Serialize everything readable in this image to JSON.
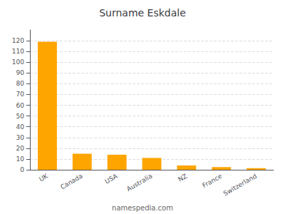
{
  "chart_data": {
    "type": "bar",
    "title": "Surname Eskdale",
    "categories": [
      "UK",
      "Canada",
      "USA",
      "Australia",
      "NZ",
      "France",
      "Switzerland"
    ],
    "values": [
      119,
      15,
      14,
      11,
      4,
      2.5,
      1.5
    ],
    "color": "#FFA500",
    "ylim": [
      0,
      130
    ],
    "yticks": [
      0,
      10,
      20,
      30,
      40,
      50,
      60,
      70,
      80,
      90,
      100,
      110,
      120
    ],
    "grid": true,
    "annotations": [
      "namespedia.com"
    ]
  }
}
